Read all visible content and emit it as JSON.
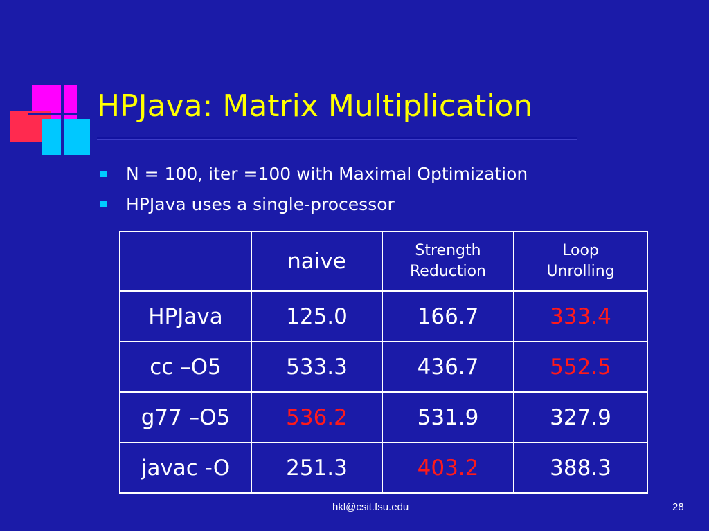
{
  "slide": {
    "title": "HPJava: Matrix Multiplication",
    "bullets": [
      "N = 100, iter =100 with Maximal Optimization",
      "HPJava uses a single-processor"
    ],
    "table": {
      "headers": [
        "",
        "naive",
        "Strength Reduction",
        "Loop Unrolling"
      ],
      "header_lines": {
        "strength": [
          "Strength",
          "Reduction"
        ],
        "loop": [
          "Loop",
          "Unrolling"
        ]
      },
      "rows": [
        [
          "HPJava",
          "125.0",
          "166.7",
          "333.4"
        ],
        [
          "cc –O5",
          "533.3",
          "436.7",
          "552.5"
        ],
        [
          "g77 –O5",
          "536.2",
          "531.9",
          "327.9"
        ],
        [
          "javac -O",
          "251.3",
          "403.2",
          "388.3"
        ]
      ],
      "highlight_color": "#ff1a1a"
    },
    "footer": {
      "email": "hkl@csit.fsu.edu",
      "page_number": "28"
    }
  },
  "colors": {
    "background": "#1b1ba8",
    "title": "#ffff00",
    "text": "#ffffff",
    "bullet": "#00ccff",
    "logo_magenta": "#ff00ff",
    "logo_red": "#ff2a4f",
    "logo_cyan": "#00c8ff"
  }
}
